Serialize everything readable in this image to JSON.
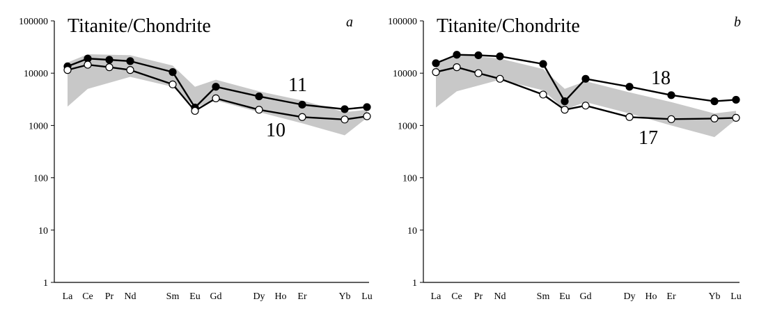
{
  "chart_data": [
    {
      "type": "line",
      "title": "Titanite/Chondrite",
      "panel_label": "a",
      "y_scale": "log",
      "ylim": [
        1,
        100000
      ],
      "y_ticks": [
        "1",
        "10",
        "100",
        "1000",
        "10000",
        "100000"
      ],
      "categories": [
        "La",
        "Ce",
        "Pr",
        "Nd",
        "Sm",
        "Eu",
        "Gd",
        "Dy",
        "Ho",
        "Er",
        "Yb",
        "Lu"
      ],
      "band": {
        "color": "#c8c8c8",
        "upper": [
          {
            "x": "La",
            "y": 16000
          },
          {
            "x": "Ce",
            "y": 23000
          },
          {
            "x": "Nd",
            "y": 22000
          },
          {
            "x": "Sm",
            "y": 14000
          },
          {
            "x": "Eu",
            "y": 5500
          },
          {
            "x": "Gd",
            "y": 7500
          },
          {
            "x": "Dy",
            "y": 4500
          },
          {
            "x": "Er",
            "y": 3000
          },
          {
            "x": "Yb",
            "y": 1800
          },
          {
            "x": "Lu",
            "y": 2000
          }
        ],
        "lower": [
          {
            "x": "La",
            "y": 2300
          },
          {
            "x": "Ce",
            "y": 5000
          },
          {
            "x": "Nd",
            "y": 8500
          },
          {
            "x": "Sm",
            "y": 5500
          },
          {
            "x": "Eu",
            "y": 2200
          },
          {
            "x": "Gd",
            "y": 3000
          },
          {
            "x": "Dy",
            "y": 1800
          },
          {
            "x": "Er",
            "y": 1100
          },
          {
            "x": "Yb",
            "y": 650
          },
          {
            "x": "Lu",
            "y": 1400
          }
        ]
      },
      "series": [
        {
          "name": "11",
          "marker": "filled",
          "points": [
            {
              "x": "La",
              "y": 13500
            },
            {
              "x": "Ce",
              "y": 19000
            },
            {
              "x": "Pr",
              "y": 18000
            },
            {
              "x": "Nd",
              "y": 17000
            },
            {
              "x": "Sm",
              "y": 10500
            },
            {
              "x": "Eu",
              "y": 2200
            },
            {
              "x": "Gd",
              "y": 5500
            },
            {
              "x": "Dy",
              "y": 3600
            },
            {
              "x": "Er",
              "y": 2500
            },
            {
              "x": "Yb",
              "y": 2050
            },
            {
              "x": "Lu",
              "y": 2250
            }
          ]
        },
        {
          "name": "10",
          "marker": "open",
          "points": [
            {
              "x": "La",
              "y": 11500
            },
            {
              "x": "Ce",
              "y": 14500
            },
            {
              "x": "Pr",
              "y": 13000
            },
            {
              "x": "Nd",
              "y": 11500
            },
            {
              "x": "Sm",
              "y": 6100
            },
            {
              "x": "Eu",
              "y": 1900
            },
            {
              "x": "Gd",
              "y": 3300
            },
            {
              "x": "Dy",
              "y": 2000
            },
            {
              "x": "Er",
              "y": 1450
            },
            {
              "x": "Yb",
              "y": 1300
            },
            {
              "x": "Lu",
              "y": 1500
            }
          ]
        }
      ]
    },
    {
      "type": "line",
      "title": "Titanite/Chondrite",
      "panel_label": "b",
      "y_scale": "log",
      "ylim": [
        1,
        100000
      ],
      "y_ticks": [
        "1",
        "10",
        "100",
        "1000",
        "10000",
        "100000"
      ],
      "categories": [
        "La",
        "Ce",
        "Pr",
        "Nd",
        "Sm",
        "Eu",
        "Gd",
        "Dy",
        "Ho",
        "Er",
        "Yb",
        "Lu"
      ],
      "band": {
        "color": "#c8c8c8",
        "upper": [
          {
            "x": "La",
            "y": 16000
          },
          {
            "x": "Ce",
            "y": 23000
          },
          {
            "x": "Nd",
            "y": 19000
          },
          {
            "x": "Sm",
            "y": 12000
          },
          {
            "x": "Eu",
            "y": 5000
          },
          {
            "x": "Gd",
            "y": 7000
          },
          {
            "x": "Dy",
            "y": 4300
          },
          {
            "x": "Er",
            "y": 2800
          },
          {
            "x": "Yb",
            "y": 1700
          },
          {
            "x": "Lu",
            "y": 1900
          }
        ],
        "lower": [
          {
            "x": "La",
            "y": 2200
          },
          {
            "x": "Ce",
            "y": 4500
          },
          {
            "x": "Nd",
            "y": 7500
          },
          {
            "x": "Sm",
            "y": 4700
          },
          {
            "x": "Eu",
            "y": 2000
          },
          {
            "x": "Gd",
            "y": 2800
          },
          {
            "x": "Dy",
            "y": 1700
          },
          {
            "x": "Er",
            "y": 1000
          },
          {
            "x": "Yb",
            "y": 600
          },
          {
            "x": "Lu",
            "y": 1300
          }
        ]
      },
      "series": [
        {
          "name": "18",
          "marker": "filled",
          "points": [
            {
              "x": "La",
              "y": 15500
            },
            {
              "x": "Ce",
              "y": 22500
            },
            {
              "x": "Pr",
              "y": 22000
            },
            {
              "x": "Nd",
              "y": 21000
            },
            {
              "x": "Sm",
              "y": 15000
            },
            {
              "x": "Eu",
              "y": 2900
            },
            {
              "x": "Gd",
              "y": 7800
            },
            {
              "x": "Dy",
              "y": 5500
            },
            {
              "x": "Er",
              "y": 3800
            },
            {
              "x": "Yb",
              "y": 2900
            },
            {
              "x": "Lu",
              "y": 3100
            }
          ]
        },
        {
          "name": "17",
          "marker": "open",
          "points": [
            {
              "x": "La",
              "y": 10500
            },
            {
              "x": "Ce",
              "y": 13000
            },
            {
              "x": "Pr",
              "y": 10000
            },
            {
              "x": "Nd",
              "y": 7800
            },
            {
              "x": "Sm",
              "y": 3900
            },
            {
              "x": "Eu",
              "y": 2000
            },
            {
              "x": "Gd",
              "y": 2400
            },
            {
              "x": "Dy",
              "y": 1450
            },
            {
              "x": "Er",
              "y": 1320
            },
            {
              "x": "Yb",
              "y": 1360
            },
            {
              "x": "Lu",
              "y": 1400
            }
          ]
        }
      ]
    }
  ]
}
